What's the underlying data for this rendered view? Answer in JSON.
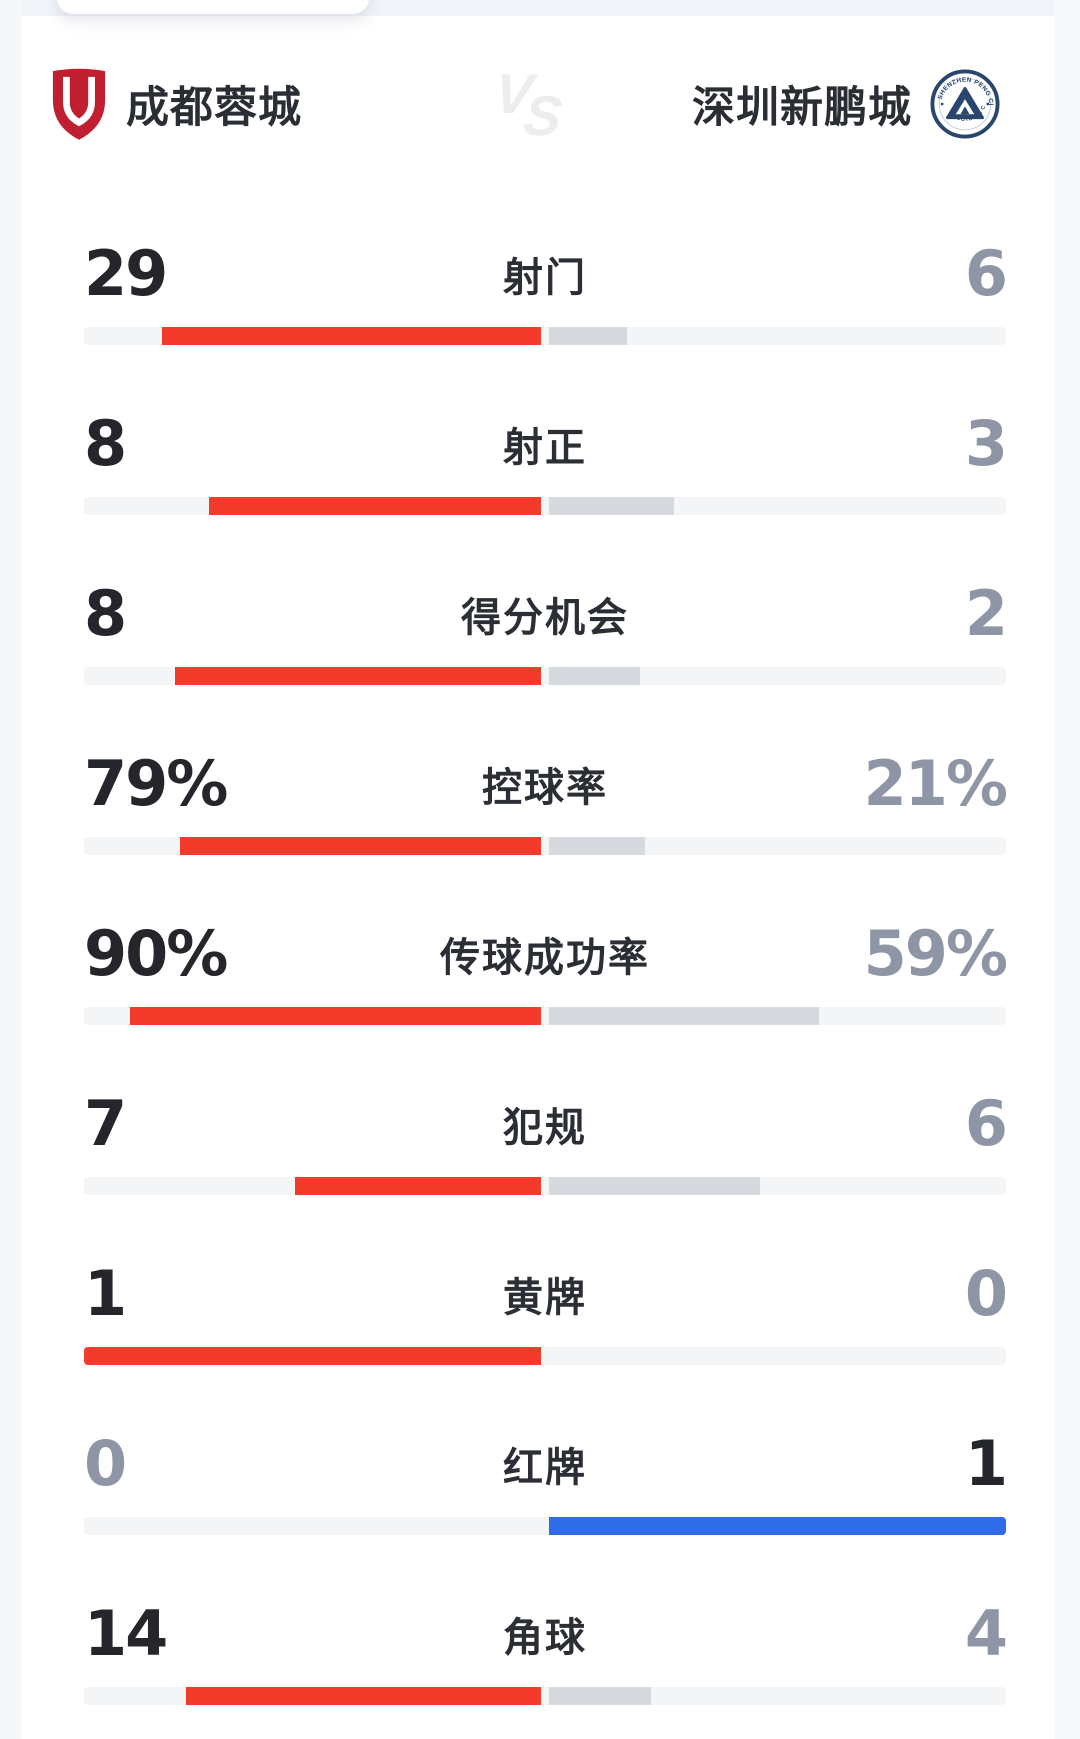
{
  "header": {
    "home": {
      "name": "成都蓉城",
      "logo_icon": "chengdu-rongcheng-crest"
    },
    "vs": "VS",
    "away": {
      "name": "深圳新鹏城",
      "logo_icon": "shenzhen-peng-city-crest",
      "logo_text_top": "SHENZHEN PENG CITY",
      "logo_text_bottom": "FOOTBALL CLUB"
    }
  },
  "colors": {
    "home_bar": "#f23b2b",
    "away_bar_win": "#2e6ce8",
    "bar_loser": "#d6d9de",
    "bar_track": "#f3f5f7",
    "value_win": "#24262b",
    "value_lose": "#8e95a5",
    "home_crest_red": "#c01f30",
    "away_crest_navy": "#28466e"
  },
  "stats": [
    {
      "label": "射门",
      "home": "29",
      "away": "6",
      "home_val": 29,
      "away_val": 6,
      "mode": "count"
    },
    {
      "label": "射正",
      "home": "8",
      "away": "3",
      "home_val": 8,
      "away_val": 3,
      "mode": "count"
    },
    {
      "label": "得分机会",
      "home": "8",
      "away": "2",
      "home_val": 8,
      "away_val": 2,
      "mode": "count"
    },
    {
      "label": "控球率",
      "home": "79%",
      "away": "21%",
      "home_val": 79,
      "away_val": 21,
      "mode": "percent"
    },
    {
      "label": "传球成功率",
      "home": "90%",
      "away": "59%",
      "home_val": 90,
      "away_val": 59,
      "mode": "percent"
    },
    {
      "label": "犯规",
      "home": "7",
      "away": "6",
      "home_val": 7,
      "away_val": 6,
      "mode": "count"
    },
    {
      "label": "黄牌",
      "home": "1",
      "away": "0",
      "home_val": 1,
      "away_val": 0,
      "mode": "count"
    },
    {
      "label": "红牌",
      "home": "0",
      "away": "1",
      "home_val": 0,
      "away_val": 1,
      "mode": "count"
    },
    {
      "label": "角球",
      "home": "14",
      "away": "4",
      "home_val": 14,
      "away_val": 4,
      "mode": "count"
    }
  ],
  "chart_data": {
    "type": "bar",
    "title": "成都蓉城 VS 深圳新鹏城",
    "categories": [
      "射门",
      "射正",
      "得分机会",
      "控球率",
      "传球成功率",
      "犯规",
      "黄牌",
      "红牌",
      "角球"
    ],
    "series": [
      {
        "name": "成都蓉城",
        "values": [
          29,
          8,
          8,
          79,
          90,
          7,
          1,
          0,
          14
        ]
      },
      {
        "name": "深圳新鹏城",
        "values": [
          6,
          3,
          2,
          21,
          59,
          6,
          0,
          1,
          4
        ]
      }
    ],
    "percent_categories": [
      "控球率",
      "传球成功率"
    ],
    "layout": "mirrored horizontal bars anchored at center; winner side colored (home red / away blue), loser gray"
  }
}
